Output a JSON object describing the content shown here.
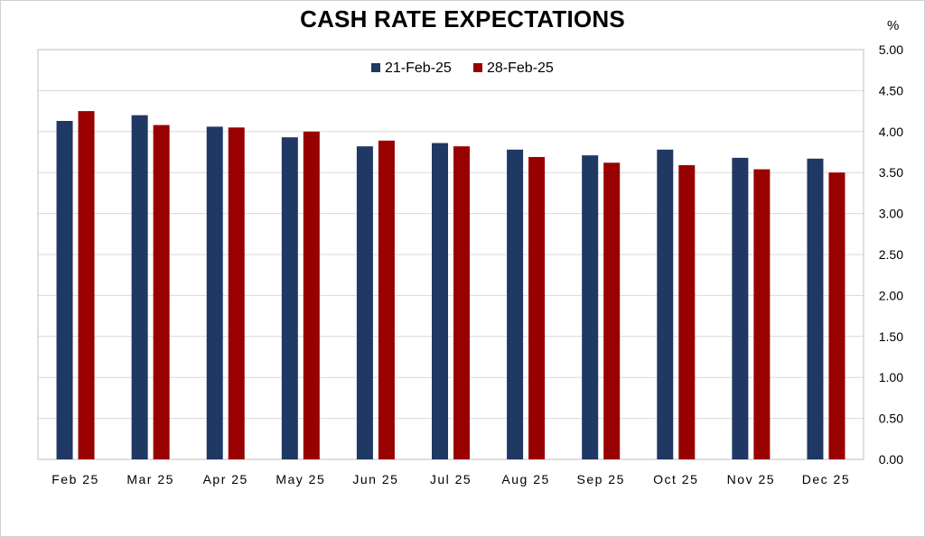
{
  "chart_data": {
    "type": "bar",
    "title": "CASH RATE EXPECTATIONS",
    "unit_label": "%",
    "xlabel": "",
    "ylabel": "",
    "categories": [
      "Feb 25",
      "Mar 25",
      "Apr 25",
      "May 25",
      "Jun 25",
      "Jul 25",
      "Aug 25",
      "Sep 25",
      "Oct 25",
      "Nov 25",
      "Dec 25"
    ],
    "series": [
      {
        "name": "21-Feb-25",
        "color": "#1f3864",
        "values": [
          4.13,
          4.2,
          4.06,
          3.93,
          3.82,
          3.86,
          3.78,
          3.71,
          3.78,
          3.68,
          3.67
        ]
      },
      {
        "name": "28-Feb-25",
        "color": "#990000",
        "values": [
          4.25,
          4.08,
          4.05,
          4.0,
          3.89,
          3.82,
          3.69,
          3.62,
          3.59,
          3.54,
          3.5
        ]
      }
    ],
    "ylim": [
      0,
      5
    ],
    "y_ticks": [
      "0.00",
      "0.50",
      "1.00",
      "1.50",
      "2.00",
      "2.50",
      "3.00",
      "3.50",
      "4.00",
      "4.50",
      "5.00"
    ],
    "y_axis_side": "right",
    "grid": true,
    "legend_position": "top-center"
  }
}
